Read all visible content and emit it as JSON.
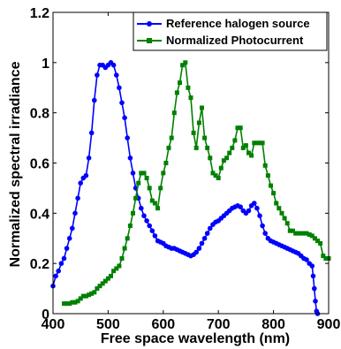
{
  "chart_data": {
    "type": "line",
    "title": "",
    "xlabel": "Free space wavelength (nm)",
    "ylabel": "Normalized spectral irradiance",
    "xlim": [
      400,
      900
    ],
    "ylim": [
      0,
      1.2
    ],
    "x_ticks": [
      400,
      500,
      600,
      700,
      800,
      900
    ],
    "x_tick_labels": [
      "400",
      "500",
      "600",
      "700",
      "800",
      "900"
    ],
    "y_ticks": [
      0,
      0.2,
      0.4,
      0.6,
      0.8,
      1,
      1.2
    ],
    "y_tick_labels": [
      "0",
      "0.2",
      "0.4",
      "0.6",
      "0.8",
      "1",
      "1.2"
    ],
    "grid": false,
    "legend_position": "top-right",
    "series": [
      {
        "name": "Reference halogen source",
        "color": "#0000ff",
        "marker": "circle",
        "x": [
          400,
          405,
          410,
          415,
          420,
          425,
          430,
          435,
          440,
          445,
          450,
          455,
          460,
          465,
          470,
          475,
          480,
          485,
          490,
          495,
          500,
          505,
          510,
          515,
          520,
          525,
          530,
          535,
          540,
          545,
          550,
          555,
          560,
          565,
          570,
          575,
          580,
          585,
          590,
          595,
          600,
          605,
          610,
          615,
          620,
          625,
          630,
          635,
          640,
          645,
          650,
          655,
          660,
          665,
          670,
          675,
          680,
          685,
          690,
          695,
          700,
          705,
          710,
          715,
          720,
          725,
          730,
          735,
          740,
          745,
          750,
          755,
          760,
          765,
          770,
          775,
          780,
          785,
          790,
          795,
          800,
          805,
          810,
          815,
          820,
          825,
          830,
          835,
          840,
          845,
          850,
          855,
          860,
          865,
          870,
          872,
          874,
          876,
          878,
          880
        ],
        "y": [
          0.11,
          0.15,
          0.17,
          0.2,
          0.22,
          0.26,
          0.3,
          0.34,
          0.4,
          0.46,
          0.52,
          0.54,
          0.55,
          0.62,
          0.72,
          0.85,
          0.95,
          0.99,
          0.99,
          0.98,
          0.99,
          1.0,
          0.99,
          0.95,
          0.9,
          0.84,
          0.78,
          0.7,
          0.62,
          0.56,
          0.5,
          0.46,
          0.42,
          0.39,
          0.37,
          0.35,
          0.33,
          0.31,
          0.29,
          0.285,
          0.28,
          0.27,
          0.265,
          0.26,
          0.26,
          0.255,
          0.25,
          0.245,
          0.24,
          0.235,
          0.23,
          0.235,
          0.245,
          0.26,
          0.28,
          0.3,
          0.32,
          0.34,
          0.355,
          0.365,
          0.37,
          0.38,
          0.39,
          0.4,
          0.41,
          0.42,
          0.425,
          0.43,
          0.425,
          0.41,
          0.4,
          0.41,
          0.43,
          0.44,
          0.42,
          0.39,
          0.35,
          0.32,
          0.3,
          0.29,
          0.285,
          0.28,
          0.275,
          0.27,
          0.265,
          0.26,
          0.255,
          0.25,
          0.245,
          0.24,
          0.23,
          0.22,
          0.215,
          0.2,
          0.19,
          0.15,
          0.1,
          0.05,
          0.01,
          0.0
        ]
      },
      {
        "name": "Normalized Photocurrent",
        "color": "#008000",
        "marker": "square",
        "x": [
          420,
          425,
          430,
          435,
          440,
          445,
          450,
          455,
          460,
          465,
          470,
          475,
          480,
          485,
          490,
          495,
          500,
          505,
          510,
          515,
          520,
          525,
          530,
          535,
          540,
          545,
          550,
          555,
          560,
          565,
          570,
          575,
          580,
          585,
          590,
          595,
          600,
          605,
          610,
          615,
          620,
          625,
          630,
          635,
          640,
          645,
          650,
          655,
          660,
          665,
          670,
          675,
          680,
          685,
          690,
          695,
          700,
          705,
          710,
          715,
          720,
          725,
          730,
          735,
          740,
          745,
          750,
          755,
          760,
          765,
          770,
          775,
          780,
          785,
          790,
          795,
          800,
          805,
          810,
          815,
          820,
          825,
          830,
          835,
          840,
          845,
          850,
          855,
          860,
          865,
          870,
          875,
          880,
          885,
          890,
          895,
          900
        ],
        "y": [
          0.04,
          0.04,
          0.04,
          0.045,
          0.045,
          0.05,
          0.06,
          0.07,
          0.07,
          0.075,
          0.08,
          0.085,
          0.1,
          0.11,
          0.12,
          0.13,
          0.14,
          0.15,
          0.17,
          0.18,
          0.19,
          0.22,
          0.26,
          0.3,
          0.35,
          0.4,
          0.46,
          0.52,
          0.56,
          0.56,
          0.54,
          0.5,
          0.45,
          0.44,
          0.42,
          0.5,
          0.56,
          0.6,
          0.66,
          0.7,
          0.8,
          0.88,
          0.92,
          0.99,
          1.0,
          0.9,
          0.86,
          0.72,
          0.66,
          0.76,
          0.82,
          0.7,
          0.66,
          0.62,
          0.56,
          0.55,
          0.54,
          0.58,
          0.61,
          0.62,
          0.64,
          0.66,
          0.69,
          0.74,
          0.74,
          0.66,
          0.67,
          0.64,
          0.63,
          0.68,
          0.68,
          0.68,
          0.68,
          0.59,
          0.55,
          0.51,
          0.48,
          0.44,
          0.42,
          0.4,
          0.38,
          0.36,
          0.33,
          0.33,
          0.32,
          0.32,
          0.32,
          0.32,
          0.32,
          0.315,
          0.31,
          0.3,
          0.29,
          0.28,
          0.23,
          0.22,
          0.22
        ]
      }
    ]
  }
}
